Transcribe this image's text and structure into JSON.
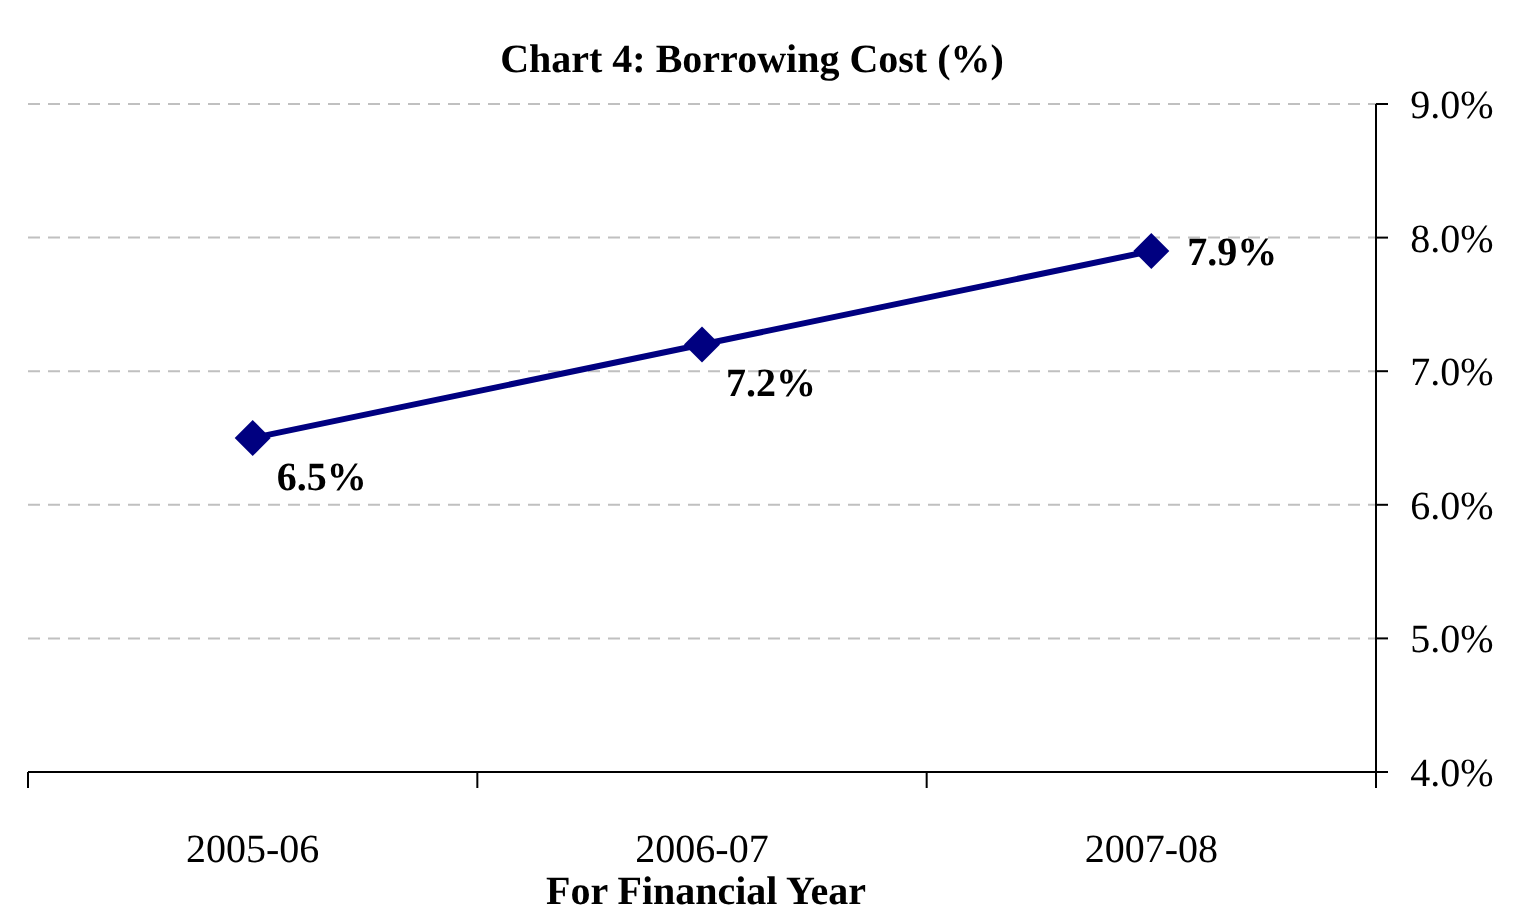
{
  "chart_data": {
    "type": "line",
    "title": "Chart 4: Borrowing Cost (%)",
    "xlabel": "For Financial Year",
    "categories": [
      "2005-06",
      "2006-07",
      "2007-08"
    ],
    "series": [
      {
        "color": "#000080",
        "values": [
          6.5,
          7.2,
          7.9
        ],
        "value_labels": [
          "6.5%",
          "7.2%",
          "7.9%"
        ]
      }
    ],
    "ylim": [
      4,
      9
    ],
    "yticks": [
      {
        "value": 4,
        "label": "4.0%"
      },
      {
        "value": 5,
        "label": "5.0%"
      },
      {
        "value": 6,
        "label": "6.0%"
      },
      {
        "value": 7,
        "label": "7.0%"
      },
      {
        "value": 8,
        "label": "8.0%"
      },
      {
        "value": 9,
        "label": "9.0%"
      }
    ],
    "grid": "y",
    "marker": "diamond",
    "line_style": "solid"
  }
}
